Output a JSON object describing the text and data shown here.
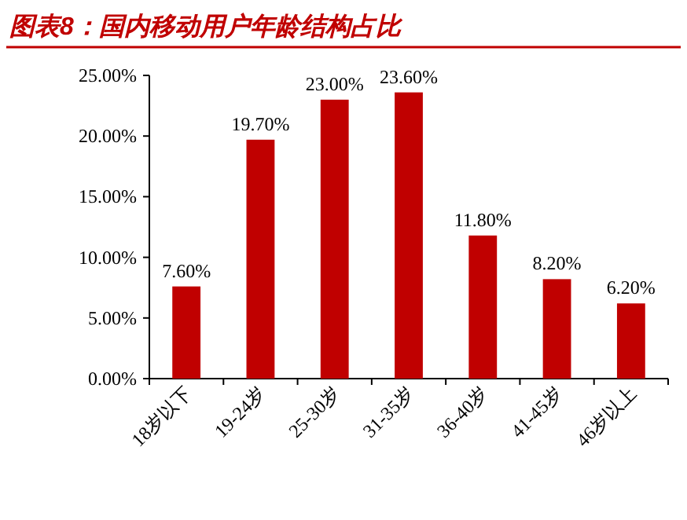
{
  "chart_data": {
    "type": "bar",
    "title": "图表8：国内移动用户年龄结构占比",
    "categories": [
      "18岁以下",
      "19-24岁",
      "25-30岁",
      "31-35岁",
      "36-40岁",
      "41-45岁",
      "46岁以上"
    ],
    "values": [
      7.6,
      19.7,
      23.0,
      23.6,
      11.8,
      8.2,
      6.2
    ],
    "value_labels": [
      "7.60%",
      "19.70%",
      "23.00%",
      "23.60%",
      "11.80%",
      "8.20%",
      "6.20%"
    ],
    "color": "#c00000",
    "ylim": [
      0,
      25
    ],
    "yticks": [
      {
        "value": 0,
        "label": "0.00%"
      },
      {
        "value": 5,
        "label": "5.00%"
      },
      {
        "value": 10,
        "label": "10.00%"
      },
      {
        "value": 15,
        "label": "15.00%"
      },
      {
        "value": 20,
        "label": "20.00%"
      },
      {
        "value": 25,
        "label": "25.00%"
      }
    ],
    "grid": false
  }
}
